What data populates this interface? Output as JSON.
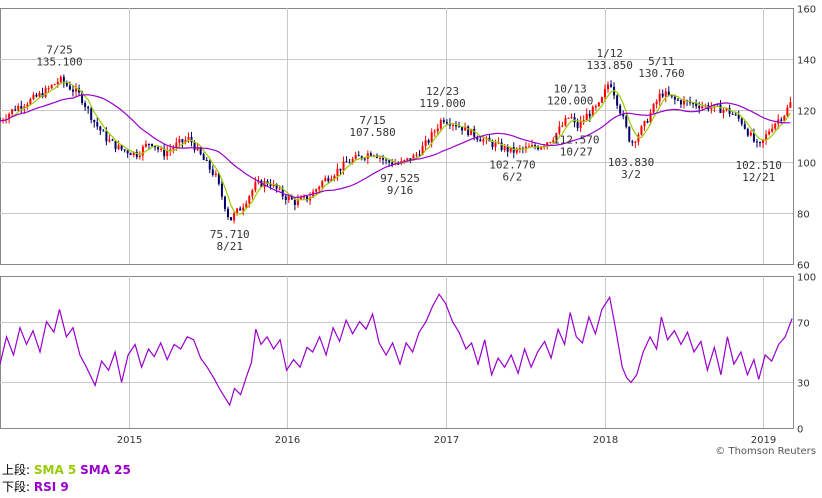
{
  "legend": {
    "upper_label": "上段:",
    "sma5": "SMA 5",
    "sma25": "SMA 25",
    "lower_label": "下段:",
    "rsi": "RSI 9"
  },
  "credit": "© Thomson Reuters",
  "colors": {
    "up": "#ff0000",
    "down": "#000066",
    "sma5": "#99cc00",
    "sma25": "#9900cc",
    "rsi": "#9900cc",
    "grid": "#c8c8c8",
    "frame": "#888888"
  },
  "chart_data": [
    {
      "type": "candlestick",
      "title": "",
      "x_ticks": [
        "2015",
        "2016",
        "2017",
        "2018",
        "2019"
      ],
      "x_tick_dates": [
        "2015-01-01",
        "2016-01-01",
        "2017-01-01",
        "2018-01-01",
        "2019-01-01"
      ],
      "x_range": [
        "2014-03-10",
        "2019-03-10"
      ],
      "ylim": [
        60,
        160
      ],
      "y_ticks": [
        60,
        80,
        100,
        120,
        140,
        160
      ],
      "y_axis_side": "right",
      "grid": true,
      "series": [
        {
          "name": "SMA 5",
          "style": "line"
        },
        {
          "name": "SMA 25",
          "style": "line"
        }
      ],
      "price_path": [
        [
          "2014-03-10",
          116
        ],
        [
          "2014-04-15",
          121
        ],
        [
          "2014-05-20",
          124
        ],
        [
          "2014-06-20",
          127
        ],
        [
          "2014-07-25",
          132
        ],
        [
          "2014-09-10",
          126
        ],
        [
          "2014-10-15",
          115
        ],
        [
          "2014-11-10",
          109
        ],
        [
          "2014-12-10",
          105
        ],
        [
          "2015-01-20",
          103
        ],
        [
          "2015-02-20",
          108
        ],
        [
          "2015-03-20",
          103
        ],
        [
          "2015-04-25",
          107
        ],
        [
          "2015-05-20",
          109
        ],
        [
          "2015-06-20",
          101
        ],
        [
          "2015-07-20",
          94
        ],
        [
          "2015-08-21",
          77
        ],
        [
          "2015-09-20",
          83
        ],
        [
          "2015-10-20",
          91
        ],
        [
          "2015-11-20",
          92
        ],
        [
          "2015-12-20",
          87
        ],
        [
          "2016-01-20",
          84
        ],
        [
          "2016-02-20",
          86
        ],
        [
          "2016-03-20",
          92
        ],
        [
          "2016-04-20",
          96
        ],
        [
          "2016-05-20",
          100
        ],
        [
          "2016-06-20",
          102
        ],
        [
          "2016-07-15",
          104
        ],
        [
          "2016-08-15",
          100
        ],
        [
          "2016-09-16",
          99
        ],
        [
          "2016-10-20",
          102
        ],
        [
          "2016-11-20",
          108
        ],
        [
          "2016-12-23",
          117
        ],
        [
          "2017-01-30",
          114
        ],
        [
          "2017-03-01",
          111
        ],
        [
          "2017-04-01",
          108
        ],
        [
          "2017-05-01",
          106
        ],
        [
          "2017-06-02",
          104
        ],
        [
          "2017-07-01",
          105
        ],
        [
          "2017-08-01",
          106
        ],
        [
          "2017-09-01",
          109
        ],
        [
          "2017-10-13",
          118
        ],
        [
          "2017-10-27",
          113
        ],
        [
          "2017-11-20",
          118
        ],
        [
          "2017-12-20",
          122
        ],
        [
          "2018-01-12",
          132
        ],
        [
          "2018-02-05",
          120
        ],
        [
          "2018-03-02",
          107
        ],
        [
          "2018-04-01",
          114
        ],
        [
          "2018-05-11",
          127
        ],
        [
          "2018-06-10",
          124
        ],
        [
          "2018-07-10",
          123
        ],
        [
          "2018-08-10",
          122
        ],
        [
          "2018-09-10",
          121
        ],
        [
          "2018-10-10",
          120
        ],
        [
          "2018-11-10",
          116
        ],
        [
          "2018-12-21",
          105
        ],
        [
          "2019-01-20",
          114
        ],
        [
          "2019-02-20",
          119
        ],
        [
          "2019-03-08",
          124
        ]
      ],
      "annotations": [
        {
          "date_label": "7/25",
          "value": "135.100",
          "x": "2014-07-25",
          "y": 135.1,
          "position": "above"
        },
        {
          "date_label": "8/21",
          "value": "75.710",
          "x": "2015-08-21",
          "y": 75.71,
          "position": "below"
        },
        {
          "date_label": "7/15",
          "value": "107.580",
          "x": "2016-07-15",
          "y": 107.58,
          "position": "above"
        },
        {
          "date_label": "9/16",
          "value": "97.525",
          "x": "2016-09-16",
          "y": 97.525,
          "position": "below"
        },
        {
          "date_label": "12/23",
          "value": "119.000",
          "x": "2016-12-23",
          "y": 119.0,
          "position": "above"
        },
        {
          "date_label": "6/2",
          "value": "102.770",
          "x": "2017-06-02",
          "y": 102.77,
          "position": "below"
        },
        {
          "date_label": "10/13",
          "value": "120.000",
          "x": "2017-10-13",
          "y": 120.0,
          "position": "above"
        },
        {
          "date_label": "10/27",
          "value": "112.570",
          "x": "2017-10-27",
          "y": 112.57,
          "position": "below"
        },
        {
          "date_label": "1/12",
          "value": "133.850",
          "x": "2018-01-12",
          "y": 133.85,
          "position": "above"
        },
        {
          "date_label": "3/2",
          "value": "103.830",
          "x": "2018-03-02",
          "y": 103.83,
          "position": "below"
        },
        {
          "date_label": "5/11",
          "value": "130.760",
          "x": "2018-05-11",
          "y": 130.76,
          "position": "above"
        },
        {
          "date_label": "12/21",
          "value": "102.510",
          "x": "2018-12-21",
          "y": 102.51,
          "position": "below"
        }
      ]
    },
    {
      "type": "line",
      "title": "",
      "x_ticks": [
        "2015",
        "2016",
        "2017",
        "2018",
        "2019"
      ],
      "x_range": [
        "2014-03-10",
        "2019-03-10"
      ],
      "ylim": [
        0,
        100
      ],
      "y_ticks": [
        0,
        30,
        70,
        100
      ],
      "y_axis_side": "right",
      "grid": true,
      "series": [
        {
          "name": "RSI 9",
          "points": [
            [
              "2014-03-10",
              42
            ],
            [
              "2014-03-25",
              60
            ],
            [
              "2014-04-10",
              48
            ],
            [
              "2014-04-25",
              66
            ],
            [
              "2014-05-10",
              55
            ],
            [
              "2014-05-25",
              64
            ],
            [
              "2014-06-10",
              50
            ],
            [
              "2014-06-25",
              70
            ],
            [
              "2014-07-12",
              63
            ],
            [
              "2014-07-25",
              78
            ],
            [
              "2014-08-10",
              60
            ],
            [
              "2014-08-25",
              66
            ],
            [
              "2014-09-10",
              48
            ],
            [
              "2014-09-25",
              40
            ],
            [
              "2014-10-15",
              28
            ],
            [
              "2014-10-30",
              44
            ],
            [
              "2014-11-15",
              38
            ],
            [
              "2014-11-30",
              50
            ],
            [
              "2014-12-15",
              30
            ],
            [
              "2014-12-30",
              48
            ],
            [
              "2015-01-15",
              55
            ],
            [
              "2015-01-30",
              40
            ],
            [
              "2015-02-15",
              52
            ],
            [
              "2015-02-28",
              47
            ],
            [
              "2015-03-15",
              56
            ],
            [
              "2015-03-30",
              45
            ],
            [
              "2015-04-15",
              55
            ],
            [
              "2015-04-30",
              52
            ],
            [
              "2015-05-15",
              60
            ],
            [
              "2015-05-30",
              58
            ],
            [
              "2015-06-15",
              46
            ],
            [
              "2015-06-30",
              40
            ],
            [
              "2015-07-15",
              33
            ],
            [
              "2015-07-30",
              25
            ],
            [
              "2015-08-10",
              20
            ],
            [
              "2015-08-21",
              15
            ],
            [
              "2015-09-01",
              26
            ],
            [
              "2015-09-15",
              22
            ],
            [
              "2015-09-30",
              35
            ],
            [
              "2015-10-10",
              43
            ],
            [
              "2015-10-20",
              65
            ],
            [
              "2015-11-01",
              55
            ],
            [
              "2015-11-15",
              60
            ],
            [
              "2015-11-30",
              52
            ],
            [
              "2015-12-15",
              58
            ],
            [
              "2015-12-30",
              38
            ],
            [
              "2016-01-15",
              45
            ],
            [
              "2016-01-30",
              40
            ],
            [
              "2016-02-15",
              53
            ],
            [
              "2016-02-28",
              50
            ],
            [
              "2016-03-15",
              60
            ],
            [
              "2016-03-30",
              48
            ],
            [
              "2016-04-15",
              66
            ],
            [
              "2016-04-30",
              57
            ],
            [
              "2016-05-15",
              71
            ],
            [
              "2016-05-30",
              62
            ],
            [
              "2016-06-15",
              70
            ],
            [
              "2016-06-30",
              65
            ],
            [
              "2016-07-15",
              75
            ],
            [
              "2016-07-30",
              56
            ],
            [
              "2016-08-15",
              48
            ],
            [
              "2016-08-30",
              56
            ],
            [
              "2016-09-16",
              42
            ],
            [
              "2016-09-30",
              56
            ],
            [
              "2016-10-15",
              50
            ],
            [
              "2016-10-30",
              63
            ],
            [
              "2016-11-15",
              70
            ],
            [
              "2016-11-30",
              80
            ],
            [
              "2016-12-15",
              88
            ],
            [
              "2016-12-30",
              82
            ],
            [
              "2017-01-15",
              70
            ],
            [
              "2017-01-30",
              63
            ],
            [
              "2017-02-15",
              52
            ],
            [
              "2017-02-28",
              56
            ],
            [
              "2017-03-15",
              42
            ],
            [
              "2017-03-30",
              58
            ],
            [
              "2017-04-15",
              35
            ],
            [
              "2017-04-30",
              46
            ],
            [
              "2017-05-15",
              40
            ],
            [
              "2017-05-30",
              48
            ],
            [
              "2017-06-15",
              36
            ],
            [
              "2017-06-30",
              52
            ],
            [
              "2017-07-15",
              40
            ],
            [
              "2017-07-30",
              50
            ],
            [
              "2017-08-15",
              57
            ],
            [
              "2017-08-30",
              46
            ],
            [
              "2017-09-15",
              65
            ],
            [
              "2017-09-30",
              55
            ],
            [
              "2017-10-13",
              76
            ],
            [
              "2017-10-27",
              60
            ],
            [
              "2017-11-10",
              56
            ],
            [
              "2017-11-25",
              73
            ],
            [
              "2017-12-10",
              62
            ],
            [
              "2017-12-25",
              78
            ],
            [
              "2018-01-12",
              86
            ],
            [
              "2018-01-25",
              66
            ],
            [
              "2018-02-10",
              40
            ],
            [
              "2018-02-20",
              33
            ],
            [
              "2018-03-02",
              30
            ],
            [
              "2018-03-15",
              35
            ],
            [
              "2018-03-30",
              50
            ],
            [
              "2018-04-15",
              60
            ],
            [
              "2018-04-30",
              52
            ],
            [
              "2018-05-11",
              73
            ],
            [
              "2018-05-25",
              58
            ],
            [
              "2018-06-10",
              64
            ],
            [
              "2018-06-25",
              55
            ],
            [
              "2018-07-10",
              63
            ],
            [
              "2018-07-25",
              50
            ],
            [
              "2018-08-10",
              57
            ],
            [
              "2018-08-25",
              38
            ],
            [
              "2018-09-10",
              53
            ],
            [
              "2018-09-25",
              35
            ],
            [
              "2018-10-10",
              60
            ],
            [
              "2018-10-25",
              42
            ],
            [
              "2018-11-10",
              50
            ],
            [
              "2018-11-25",
              35
            ],
            [
              "2018-12-10",
              45
            ],
            [
              "2018-12-21",
              32
            ],
            [
              "2019-01-05",
              48
            ],
            [
              "2019-01-20",
              44
            ],
            [
              "2019-02-05",
              55
            ],
            [
              "2019-02-20",
              60
            ],
            [
              "2019-03-08",
              72
            ]
          ]
        }
      ]
    }
  ]
}
